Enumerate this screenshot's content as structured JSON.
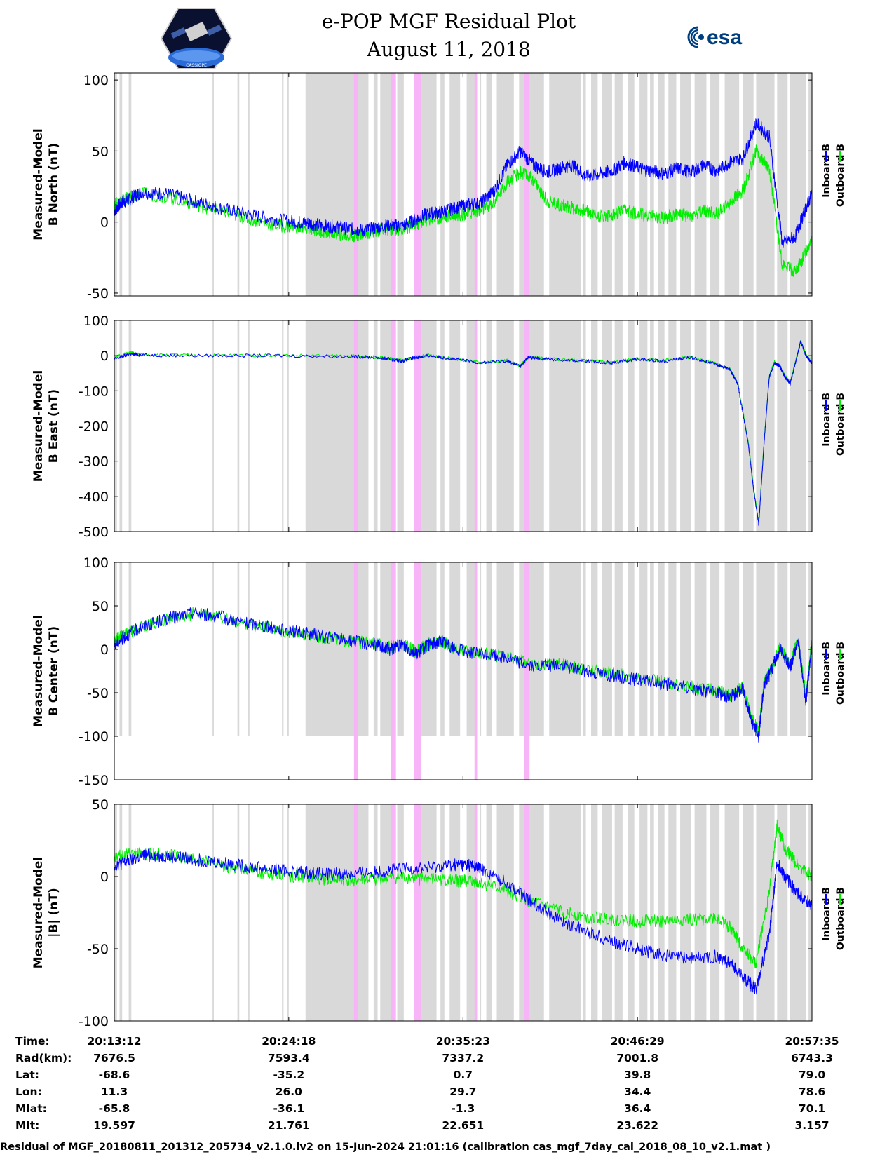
{
  "header": {
    "title_line1": "e-POP MGF Residual Plot",
    "title_line2": "August 11, 2018",
    "esa_logo_text": "esa",
    "mission_logo_text": "CASSIOPE"
  },
  "colors": {
    "inboard": "#0000ff",
    "outboard": "#00ee00",
    "gray_band": "#d9d9d9",
    "pink_band": "#f7b5f7"
  },
  "legend": {
    "inboard": "Inboard B",
    "outboard": "Outboard B"
  },
  "chart_data": [
    {
      "type": "line",
      "ylabel": [
        "Measured-Model",
        "B North (nT)"
      ],
      "ylim": [
        -52,
        105
      ],
      "yticks": [
        100,
        50,
        0,
        -50
      ],
      "ytick_labels": [
        "100",
        "50",
        "0",
        "-50"
      ],
      "xlim": [
        0,
        2663
      ],
      "series": [
        {
          "name": "Inboard B",
          "x": [
            0,
            30,
            60,
            100,
            200,
            300,
            400,
            500,
            600,
            700,
            750,
            800,
            850,
            900,
            950,
            1000,
            1050,
            1100,
            1150,
            1200,
            1250,
            1300,
            1350,
            1400,
            1450,
            1500,
            1550,
            1600,
            1650,
            1700,
            1750,
            1800,
            1850,
            1900,
            1950,
            2000,
            2050,
            2100,
            2150,
            2200,
            2250,
            2300,
            2350,
            2400,
            2450,
            2500,
            2550,
            2600,
            2630,
            2663
          ],
          "y": [
            8,
            14,
            16,
            21,
            20,
            15,
            10,
            6,
            2,
            0,
            -1,
            -3,
            -3,
            -5,
            -6,
            -4,
            -2,
            -3,
            2,
            6,
            7,
            10,
            12,
            14,
            22,
            40,
            50,
            40,
            35,
            38,
            40,
            32,
            34,
            36,
            42,
            38,
            36,
            34,
            38,
            35,
            40,
            36,
            42,
            45,
            70,
            60,
            -15,
            -10,
            5,
            20
          ]
        },
        {
          "name": "Outboard B",
          "x": [
            0,
            30,
            60,
            100,
            200,
            300,
            400,
            500,
            600,
            700,
            750,
            800,
            850,
            900,
            950,
            1000,
            1050,
            1100,
            1150,
            1200,
            1250,
            1300,
            1350,
            1400,
            1450,
            1500,
            1550,
            1600,
            1650,
            1700,
            1750,
            1800,
            1850,
            1900,
            1950,
            2000,
            2050,
            2100,
            2150,
            2200,
            2250,
            2300,
            2350,
            2400,
            2450,
            2500,
            2550,
            2600,
            2630,
            2663
          ],
          "y": [
            12,
            15,
            17,
            20,
            18,
            13,
            8,
            3,
            -2,
            -4,
            -5,
            -7,
            -8,
            -10,
            -8,
            -6,
            -5,
            -5,
            -2,
            2,
            3,
            5,
            6,
            8,
            14,
            28,
            35,
            30,
            15,
            12,
            10,
            8,
            4,
            5,
            8,
            6,
            4,
            3,
            6,
            4,
            8,
            6,
            14,
            22,
            50,
            38,
            -30,
            -35,
            -25,
            -10
          ]
        }
      ]
    },
    {
      "type": "line",
      "ylabel": [
        "Measured-Model",
        "B East (nT)"
      ],
      "ylim": [
        -500,
        100
      ],
      "yticks": [
        100,
        0,
        -100,
        -200,
        -300,
        -400,
        -500
      ],
      "ytick_labels": [
        "100",
        "0",
        "-100",
        "-200",
        "-300",
        "-400",
        "-500"
      ],
      "xlim": [
        0,
        2663
      ],
      "series": [
        {
          "name": "Inboard B",
          "x": [
            0,
            60,
            100,
            300,
            600,
            900,
            1000,
            1050,
            1100,
            1150,
            1200,
            1300,
            1400,
            1500,
            1550,
            1580,
            1650,
            1800,
            1900,
            2000,
            2100,
            2200,
            2300,
            2350,
            2380,
            2420,
            2440,
            2460,
            2480,
            2500,
            2520,
            2540,
            2560,
            2580,
            2600,
            2620,
            2640,
            2663
          ],
          "y": [
            -10,
            5,
            2,
            0,
            0,
            -2,
            -5,
            -10,
            -15,
            -5,
            0,
            -10,
            -20,
            -15,
            -30,
            -5,
            -10,
            -15,
            -20,
            -10,
            -15,
            -5,
            -25,
            -40,
            -80,
            -250,
            -380,
            -480,
            -250,
            -60,
            -20,
            -30,
            -60,
            -80,
            -20,
            40,
            0,
            -20
          ]
        },
        {
          "name": "Outboard B",
          "x": [
            0,
            60,
            100,
            300,
            600,
            900,
            1000,
            1050,
            1100,
            1150,
            1200,
            1300,
            1400,
            1500,
            1550,
            1580,
            1650,
            1800,
            1900,
            2000,
            2100,
            2200,
            2300,
            2350,
            2380,
            2420,
            2440,
            2460,
            2480,
            2500,
            2520,
            2540,
            2560,
            2580,
            2600,
            2620,
            2640,
            2663
          ],
          "y": [
            -5,
            8,
            3,
            1,
            1,
            -1,
            -4,
            -9,
            -14,
            -4,
            1,
            -9,
            -19,
            -14,
            -29,
            -4,
            -9,
            -14,
            -19,
            -9,
            -14,
            -4,
            -24,
            -39,
            -79,
            -245,
            -375,
            -475,
            -245,
            -58,
            -18,
            -28,
            -58,
            -78,
            -18,
            42,
            2,
            -18
          ]
        }
      ]
    },
    {
      "type": "line",
      "ylabel": [
        "Measured-Model",
        "B Center (nT)"
      ],
      "ylim": [
        -150,
        100
      ],
      "yticks": [
        100,
        50,
        0,
        -50,
        -100,
        -150
      ],
      "ytick_labels": [
        "100",
        "50",
        "0",
        "-50",
        "-100",
        "-150"
      ],
      "xlim": [
        0,
        2663
      ],
      "series": [
        {
          "name": "Inboard B",
          "x": [
            0,
            40,
            100,
            200,
            300,
            400,
            500,
            600,
            700,
            800,
            900,
            1000,
            1050,
            1100,
            1150,
            1200,
            1250,
            1300,
            1400,
            1500,
            1600,
            1700,
            1800,
            1900,
            2000,
            2100,
            2200,
            2300,
            2350,
            2400,
            2430,
            2460,
            2480,
            2500,
            2540,
            2580,
            2610,
            2640,
            2663
          ],
          "y": [
            5,
            15,
            25,
            35,
            42,
            38,
            30,
            25,
            20,
            15,
            10,
            5,
            0,
            5,
            -5,
            5,
            10,
            0,
            -5,
            -10,
            -20,
            -18,
            -25,
            -30,
            -35,
            -40,
            -45,
            -50,
            -55,
            -45,
            -80,
            -100,
            -40,
            -30,
            0,
            -20,
            10,
            -60,
            10
          ]
        },
        {
          "name": "Outboard B",
          "x": [
            0,
            40,
            100,
            200,
            300,
            400,
            500,
            600,
            700,
            800,
            900,
            1000,
            1050,
            1100,
            1150,
            1200,
            1250,
            1300,
            1400,
            1500,
            1600,
            1700,
            1800,
            1900,
            2000,
            2100,
            2200,
            2300,
            2350,
            2400,
            2430,
            2460,
            2480,
            2500,
            2540,
            2580,
            2610,
            2640,
            2663
          ],
          "y": [
            10,
            17,
            25,
            34,
            41,
            37,
            29,
            24,
            19,
            14,
            9,
            6,
            2,
            6,
            -3,
            6,
            10,
            0,
            -4,
            -9,
            -18,
            -17,
            -23,
            -28,
            -33,
            -38,
            -43,
            -48,
            -52,
            -43,
            -78,
            -95,
            -38,
            -28,
            2,
            -18,
            12,
            -55,
            12
          ]
        }
      ]
    },
    {
      "type": "line",
      "ylabel": [
        "Measured-Model",
        "|B| (nT)"
      ],
      "ylim": [
        -100,
        50
      ],
      "yticks": [
        50,
        0,
        -50,
        -100
      ],
      "ytick_labels": [
        "50",
        "0",
        "-50",
        "-100"
      ],
      "xlim": [
        0,
        2663
      ],
      "series": [
        {
          "name": "Inboard B",
          "x": [
            0,
            50,
            120,
            200,
            300,
            400,
            500,
            600,
            700,
            800,
            900,
            1000,
            1100,
            1200,
            1300,
            1350,
            1400,
            1500,
            1600,
            1700,
            1800,
            1900,
            2000,
            2100,
            2200,
            2300,
            2350,
            2400,
            2450,
            2500,
            2530,
            2560,
            2600,
            2663
          ],
          "y": [
            8,
            10,
            15,
            14,
            12,
            10,
            7,
            5,
            3,
            2,
            2,
            3,
            5,
            6,
            8,
            8,
            5,
            -5,
            -18,
            -30,
            -38,
            -45,
            -50,
            -55,
            -57,
            -55,
            -60,
            -70,
            -78,
            -40,
            10,
            0,
            -10,
            -20
          ]
        },
        {
          "name": "Outboard B",
          "x": [
            0,
            50,
            120,
            200,
            300,
            400,
            500,
            600,
            700,
            800,
            900,
            1000,
            1100,
            1200,
            1300,
            1350,
            1400,
            1500,
            1600,
            1700,
            1800,
            1900,
            2000,
            2100,
            2200,
            2300,
            2350,
            2400,
            2450,
            2500,
            2530,
            2560,
            2600,
            2663
          ],
          "y": [
            14,
            15,
            16,
            15,
            12,
            8,
            5,
            2,
            0,
            -2,
            -3,
            -2,
            -1,
            -2,
            -3,
            -3,
            -5,
            -10,
            -18,
            -24,
            -28,
            -30,
            -31,
            -31,
            -30,
            -29,
            -35,
            -50,
            -60,
            -10,
            35,
            20,
            10,
            0
          ]
        }
      ]
    }
  ],
  "bands": {
    "gray": [
      [
        0,
        10
      ],
      [
        20,
        30
      ],
      [
        55,
        65
      ],
      [
        375,
        380
      ],
      [
        470,
        477
      ],
      [
        510,
        516
      ],
      [
        640,
        646
      ],
      [
        660,
        666
      ],
      [
        730,
        970
      ],
      [
        990,
        1005
      ],
      [
        1015,
        1065
      ],
      [
        1080,
        1105
      ],
      [
        1170,
        1230
      ],
      [
        1245,
        1260
      ],
      [
        1280,
        1320
      ],
      [
        1345,
        1385
      ],
      [
        1395,
        1400
      ],
      [
        1420,
        1440
      ],
      [
        1460,
        1525
      ],
      [
        1545,
        1570
      ],
      [
        1580,
        1640
      ],
      [
        1660,
        1780
      ],
      [
        1790,
        1800
      ],
      [
        1820,
        1845
      ],
      [
        1860,
        1900
      ],
      [
        1910,
        1940
      ],
      [
        1960,
        1985
      ],
      [
        2005,
        2035
      ],
      [
        2045,
        2060
      ],
      [
        2075,
        2100
      ],
      [
        2115,
        2145
      ],
      [
        2160,
        2200
      ],
      [
        2215,
        2260
      ],
      [
        2275,
        2310
      ],
      [
        2330,
        2385
      ],
      [
        2400,
        2440
      ],
      [
        2450,
        2520
      ],
      [
        2530,
        2570
      ],
      [
        2580,
        2640
      ],
      [
        2650,
        2663
      ]
    ],
    "pink": [
      [
        915,
        930
      ],
      [
        1055,
        1075
      ],
      [
        1145,
        1170
      ],
      [
        1375,
        1385
      ],
      [
        1565,
        1585
      ]
    ]
  },
  "time_axis": {
    "tick_labels": [
      "20:13:12",
      "20:24:18",
      "20:35:23",
      "20:46:29",
      "20:57:35"
    ],
    "tick_x": [
      0,
      666,
      1331,
      1997,
      2663
    ]
  },
  "ephemeris": {
    "rows": [
      {
        "label": "Time:",
        "values": [
          "20:13:12",
          "20:24:18",
          "20:35:23",
          "20:46:29",
          "20:57:35"
        ]
      },
      {
        "label": "Rad(km):",
        "values": [
          "7676.5",
          "7593.4",
          "7337.2",
          "7001.8",
          "6743.3"
        ]
      },
      {
        "label": "Lat:",
        "values": [
          "-68.6",
          "-35.2",
          "0.7",
          "39.8",
          "79.0"
        ]
      },
      {
        "label": "Lon:",
        "values": [
          "11.3",
          "26.0",
          "29.7",
          "34.4",
          "78.6"
        ]
      },
      {
        "label": "Mlat:",
        "values": [
          "-65.8",
          "-36.1",
          "-1.3",
          "36.4",
          "70.1"
        ]
      },
      {
        "label": "Mlt:",
        "values": [
          "19.597",
          "21.761",
          "22.651",
          "23.622",
          "3.157"
        ]
      }
    ]
  },
  "footer": {
    "text": "Residual of MGF_20180811_201312_205734_v2.1.0.lv2 on 15-Jun-2024 21:01:16 (calibration cas_mgf_7day_cal_2018_08_10_v2.1.mat )"
  }
}
